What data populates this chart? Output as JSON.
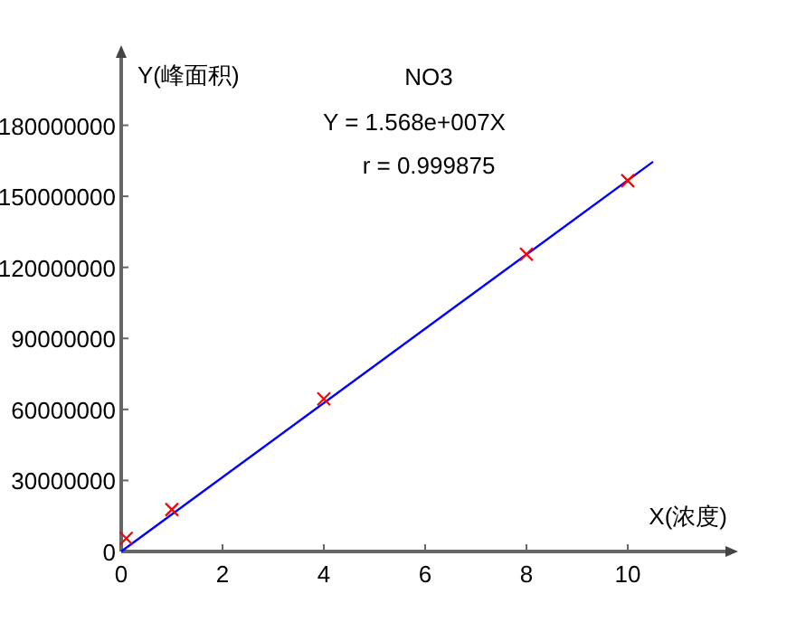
{
  "chart_data": {
    "type": "scatter",
    "title": "NO3",
    "annotations": [
      "Y = 1.568e+007X",
      "r = 0.999875"
    ],
    "xlabel": "X(浓度)",
    "ylabel": "Y(峰面积)",
    "xlim": [
      0,
      12
    ],
    "ylim": [
      0,
      210000000
    ],
    "xticks": [
      0,
      2,
      4,
      6,
      8,
      10
    ],
    "yticks": [
      0,
      30000000,
      60000000,
      90000000,
      120000000,
      150000000,
      180000000
    ],
    "grid": false,
    "series": [
      {
        "type": "line",
        "color": "#0000ff",
        "marker": "none",
        "x": [
          0,
          10.5
        ],
        "values": [
          0,
          164600000
        ]
      },
      {
        "color": "#ff0000",
        "marker": "cross",
        "x": [
          0.1,
          1,
          4,
          8,
          10
        ],
        "values": [
          5500000,
          17700000,
          64400000,
          125500000,
          156600000
        ]
      }
    ]
  }
}
